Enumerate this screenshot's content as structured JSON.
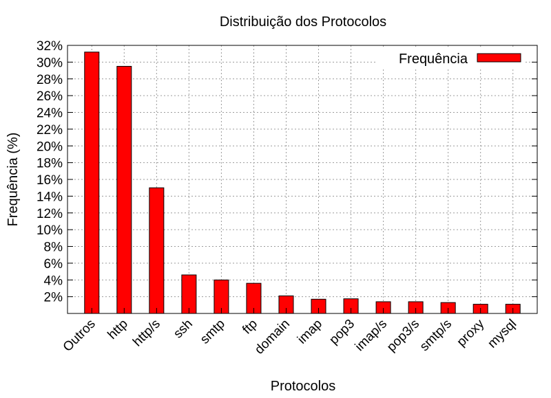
{
  "chart_data": {
    "type": "bar",
    "title": "Distribuição dos Protocolos",
    "xlabel": "Protocolos",
    "ylabel": "Frequência (%)",
    "categories": [
      "Outros",
      "http",
      "http/s",
      "ssh",
      "smtp",
      "ftp",
      "domain",
      "imap",
      "pop3",
      "imap/s",
      "pop3/s",
      "smtp/s",
      "proxy",
      "mysql"
    ],
    "series": [
      {
        "name": "Frequência",
        "values": [
          31.2,
          29.5,
          15.0,
          4.6,
          4.0,
          3.6,
          2.1,
          1.7,
          1.75,
          1.4,
          1.4,
          1.3,
          1.1,
          1.1
        ]
      }
    ],
    "ylim": [
      0,
      32
    ],
    "yticks": [
      2,
      4,
      6,
      8,
      10,
      12,
      14,
      16,
      18,
      20,
      22,
      24,
      26,
      28,
      30,
      32
    ],
    "ytick_labels": [
      "2%",
      "4%",
      "6%",
      "8%",
      "10%",
      "12%",
      "14%",
      "16%",
      "18%",
      "20%",
      "22%",
      "24%",
      "26%",
      "28%",
      "30%",
      "32%"
    ],
    "grid": true,
    "legend_position": "top-right",
    "bar_color": "#ff0000"
  }
}
